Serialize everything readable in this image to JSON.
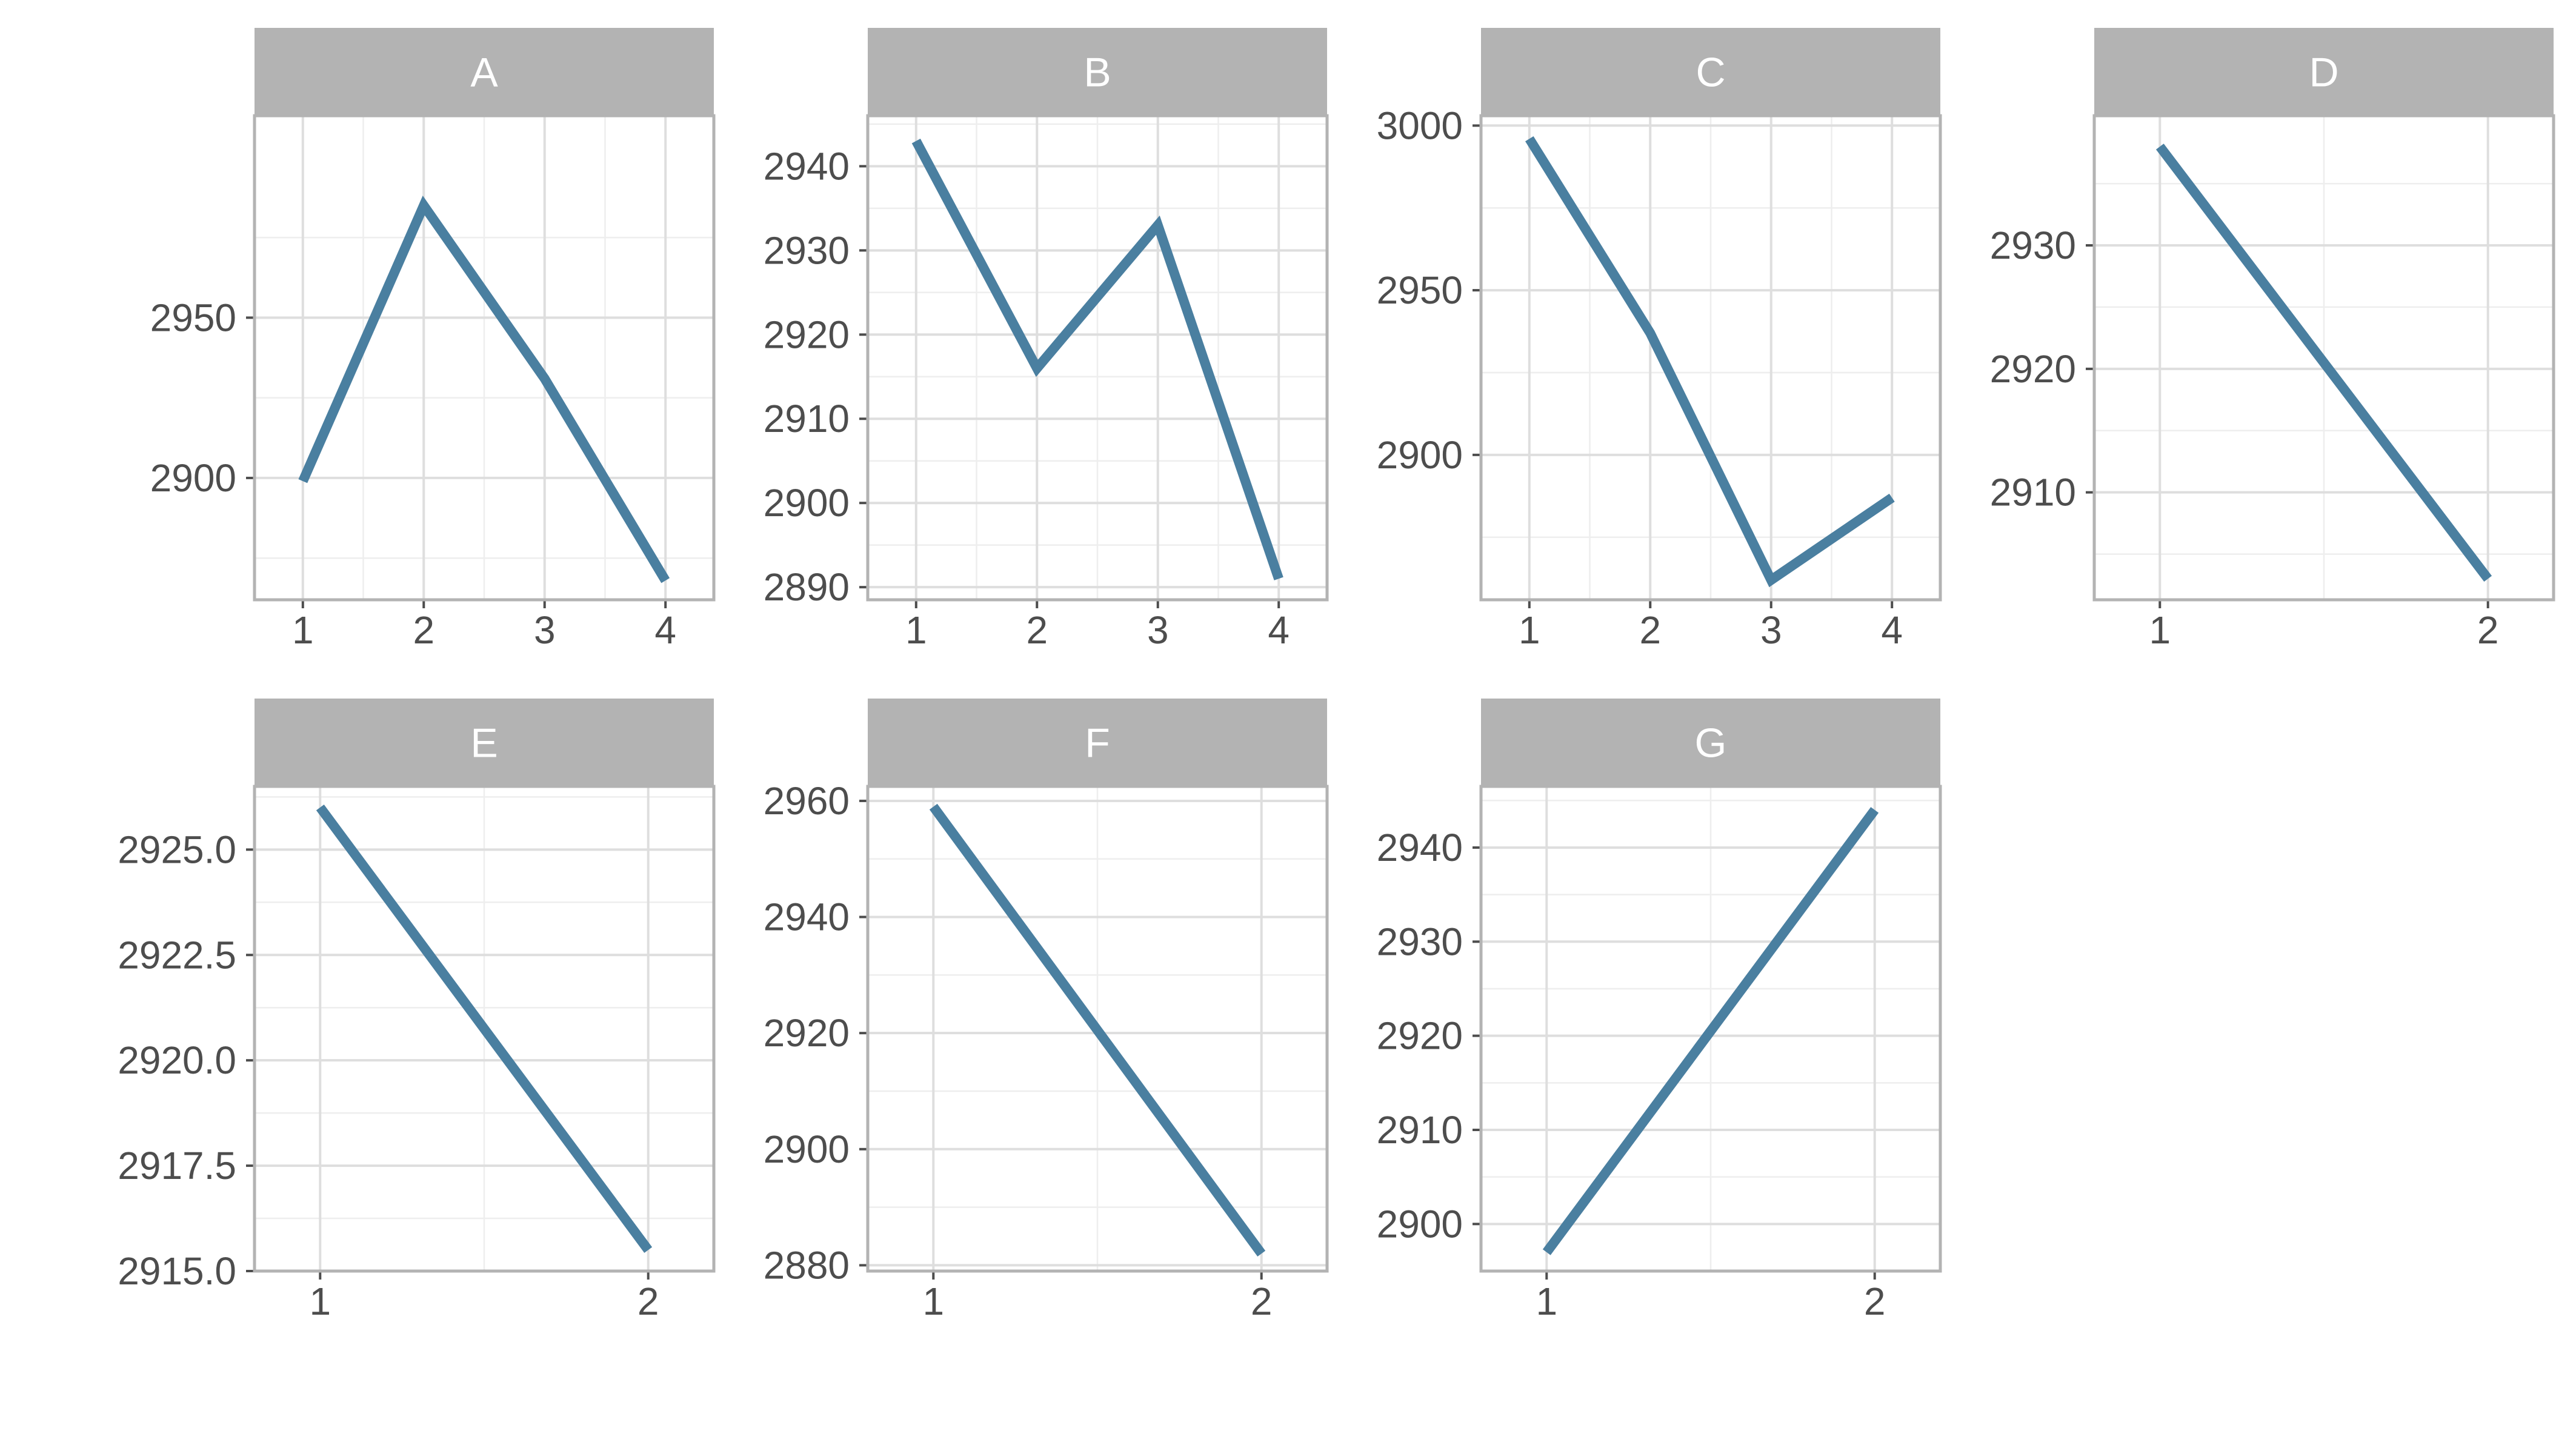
{
  "chart_data": [
    {
      "type": "line",
      "facet": "A",
      "x": [
        1,
        2,
        3,
        4
      ],
      "y": [
        2899,
        2985,
        2931,
        2868
      ],
      "x_ticks": [
        "1",
        "2",
        "3",
        "4"
      ],
      "y_ticks": [
        "2900",
        "2950"
      ],
      "xlim": [
        0.6,
        4.4
      ],
      "ylim": [
        2862,
        3013
      ]
    },
    {
      "type": "line",
      "facet": "B",
      "x": [
        1,
        2,
        3,
        4
      ],
      "y": [
        2943,
        2916,
        2933,
        2891
      ],
      "x_ticks": [
        "1",
        "2",
        "3",
        "4"
      ],
      "y_ticks": [
        "2890",
        "2900",
        "2910",
        "2920",
        "2930",
        "2940"
      ],
      "xlim": [
        0.6,
        4.4
      ],
      "ylim": [
        2888.5,
        2946
      ]
    },
    {
      "type": "line",
      "facet": "C",
      "x": [
        1,
        2,
        3,
        4
      ],
      "y": [
        2996,
        2937,
        2862,
        2887
      ],
      "x_ticks": [
        "1",
        "2",
        "3",
        "4"
      ],
      "y_ticks": [
        "2900",
        "2950",
        "3000"
      ],
      "xlim": [
        0.6,
        4.4
      ],
      "ylim": [
        2856,
        3003
      ]
    },
    {
      "type": "line",
      "facet": "D",
      "x": [
        1,
        2
      ],
      "y": [
        2938,
        2903
      ],
      "x_ticks": [
        "1",
        "2"
      ],
      "y_ticks": [
        "2910",
        "2920",
        "2930"
      ],
      "xlim": [
        0.8,
        2.2
      ],
      "ylim": [
        2901.3,
        2940.5
      ]
    },
    {
      "type": "line",
      "facet": "E",
      "x": [
        1,
        2
      ],
      "y": [
        2926,
        2915.5
      ],
      "x_ticks": [
        "1",
        "2"
      ],
      "y_ticks": [
        "2915.0",
        "2917.5",
        "2920.0",
        "2922.5",
        "2925.0"
      ],
      "xlim": [
        0.8,
        2.2
      ],
      "ylim": [
        2915,
        2926.5
      ]
    },
    {
      "type": "line",
      "facet": "F",
      "x": [
        1,
        2
      ],
      "y": [
        2959,
        2882
      ],
      "x_ticks": [
        "1",
        "2"
      ],
      "y_ticks": [
        "2880",
        "2900",
        "2920",
        "2940",
        "2960"
      ],
      "xlim": [
        0.8,
        2.2
      ],
      "ylim": [
        2879,
        2962.5
      ]
    },
    {
      "type": "line",
      "facet": "G",
      "x": [
        1,
        2
      ],
      "y": [
        2897,
        2944
      ],
      "x_ticks": [
        "1",
        "2"
      ],
      "y_ticks": [
        "2900",
        "2910",
        "2920",
        "2930",
        "2940"
      ],
      "xlim": [
        0.8,
        2.2
      ],
      "ylim": [
        2895,
        2946.5
      ]
    }
  ],
  "style": {
    "line_color": "#4a7fa0",
    "strip_color": "#b3b3b3",
    "grid": true
  }
}
